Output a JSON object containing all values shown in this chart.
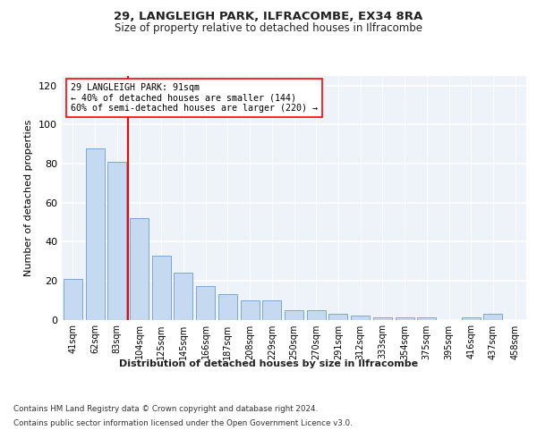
{
  "title1": "29, LANGLEIGH PARK, ILFRACOMBE, EX34 8RA",
  "title2": "Size of property relative to detached houses in Ilfracombe",
  "xlabel": "Distribution of detached houses by size in Ilfracombe",
  "ylabel": "Number of detached properties",
  "categories": [
    "41sqm",
    "62sqm",
    "83sqm",
    "104sqm",
    "125sqm",
    "145sqm",
    "166sqm",
    "187sqm",
    "208sqm",
    "229sqm",
    "250sqm",
    "270sqm",
    "291sqm",
    "312sqm",
    "333sqm",
    "354sqm",
    "375sqm",
    "395sqm",
    "416sqm",
    "437sqm",
    "458sqm"
  ],
  "values": [
    21,
    88,
    81,
    52,
    33,
    24,
    17,
    13,
    10,
    10,
    5,
    5,
    3,
    2,
    1,
    1,
    1,
    0,
    1,
    3,
    0
  ],
  "bar_color": "#c5d9f0",
  "bar_edge_color": "#7ca6d8",
  "vline_x": 2.5,
  "vline_color": "red",
  "annotation_text": "29 LANGLEIGH PARK: 91sqm\n← 40% of detached houses are smaller (144)\n60% of semi-detached houses are larger (220) →",
  "annotation_box_color": "white",
  "annotation_box_edge": "red",
  "ylim": [
    0,
    125
  ],
  "yticks": [
    0,
    20,
    40,
    60,
    80,
    100,
    120
  ],
  "footer1": "Contains HM Land Registry data © Crown copyright and database right 2024.",
  "footer2": "Contains public sector information licensed under the Open Government Licence v3.0.",
  "bg_color": "#ffffff",
  "plot_bg_color": "#eef2f9"
}
